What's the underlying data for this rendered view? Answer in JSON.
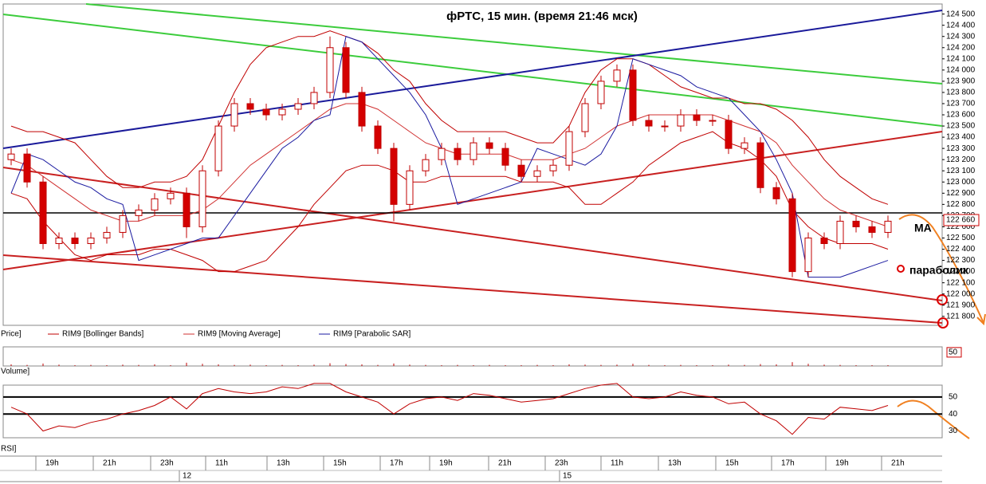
{
  "chart_data": [
    {
      "type": "candlestick",
      "title": "фРТС,  15 мин.  (время 21:46 мск)",
      "price_label": "Price]",
      "xlim": [
        -0.5,
        58.4
      ],
      "ylim": [
        121720,
        124590
      ],
      "yticks": [
        {
          "value": 124500,
          "label": "124 500"
        },
        {
          "value": 124400,
          "label": "124 400"
        },
        {
          "value": 124300,
          "label": "124 300"
        },
        {
          "value": 124200,
          "label": "124 200"
        },
        {
          "value": 124100,
          "label": "124 100"
        },
        {
          "value": 124000,
          "label": "124 000"
        },
        {
          "value": 123900,
          "label": "123 900"
        },
        {
          "value": 123800,
          "label": "123 800"
        },
        {
          "value": 123700,
          "label": "123 700"
        },
        {
          "value": 123600,
          "label": "123 600"
        },
        {
          "value": 123500,
          "label": "123 500"
        },
        {
          "value": 123400,
          "label": "123 400"
        },
        {
          "value": 123300,
          "label": "123 300"
        },
        {
          "value": 123200,
          "label": "123 200"
        },
        {
          "value": 123100,
          "label": "123 100"
        },
        {
          "value": 123000,
          "label": "123 000"
        },
        {
          "value": 122900,
          "label": "122 900"
        },
        {
          "value": 122800,
          "label": "122 800"
        },
        {
          "value": 122700,
          "label": "122 700"
        },
        {
          "value": 122600,
          "label": "122 600"
        },
        {
          "value": 122500,
          "label": "122 500"
        },
        {
          "value": 122400,
          "label": "122 400"
        },
        {
          "value": 122300,
          "label": "122 300"
        },
        {
          "value": 122200,
          "label": "122 200"
        },
        {
          "value": 122100,
          "label": "122 100"
        },
        {
          "value": 122000,
          "label": "122 000"
        },
        {
          "value": 121900,
          "label": "121 900"
        },
        {
          "value": 121800,
          "label": "121 800"
        }
      ],
      "last_price": {
        "value": 122660,
        "label": "122 660"
      },
      "xticks": [
        {
          "value": 1.55,
          "label": "19h"
        },
        {
          "value": 5.15,
          "label": "21h"
        },
        {
          "value": 8.75,
          "label": "23h"
        },
        {
          "value": 12.2,
          "label": "11h"
        },
        {
          "value": 16.05,
          "label": "13h"
        },
        {
          "value": 19.6,
          "label": "15h"
        },
        {
          "value": 23.15,
          "label": "17h"
        },
        {
          "value": 26.25,
          "label": "19h"
        },
        {
          "value": 29.95,
          "label": "21h"
        },
        {
          "value": 33.5,
          "label": "23h"
        },
        {
          "value": 37,
          "label": "11h"
        },
        {
          "value": 40.6,
          "label": "13h"
        },
        {
          "value": 44.2,
          "label": "15h"
        },
        {
          "value": 47.7,
          "label": "17h"
        },
        {
          "value": 51.1,
          "label": "19h"
        },
        {
          "value": 54.6,
          "label": "21h"
        }
      ],
      "day_ticks": [
        {
          "value": 10.55,
          "label": "12"
        },
        {
          "value": 34.4,
          "label": "15"
        }
      ],
      "open": [
        123200,
        123250,
        123000,
        122450,
        122500,
        122450,
        122500,
        122550,
        122700,
        122750,
        122850,
        122900,
        122600,
        123100,
        123500,
        123700,
        123650,
        123600,
        123650,
        123700,
        123800,
        124200,
        123800,
        123500,
        123300,
        122800,
        123100,
        123200,
        123300,
        123200,
        123350,
        123300,
        123150,
        123050,
        123100,
        123150,
        123450,
        123700,
        123900,
        124000,
        123550,
        123500,
        123500,
        123600,
        123550,
        123550,
        123300,
        123350,
        122950,
        122850,
        122200,
        122500,
        122450,
        122650,
        122600,
        122550
      ],
      "high": [
        123300,
        123300,
        123050,
        122550,
        122550,
        122550,
        122600,
        122750,
        122800,
        122900,
        122950,
        122950,
        123150,
        123550,
        123750,
        123750,
        123700,
        123700,
        123750,
        123850,
        124300,
        124250,
        123850,
        123550,
        123350,
        123150,
        123250,
        123350,
        123350,
        123400,
        123400,
        123350,
        123200,
        123150,
        123200,
        123500,
        123750,
        123950,
        124050,
        124050,
        123600,
        123550,
        123650,
        123650,
        123600,
        123600,
        123400,
        123400,
        123000,
        122900,
        122550,
        122550,
        122700,
        122700,
        122650,
        122700
      ],
      "low": [
        123150,
        122950,
        122400,
        122400,
        122400,
        122400,
        122450,
        122500,
        122650,
        122700,
        122800,
        122500,
        122550,
        123050,
        123450,
        123600,
        123550,
        123550,
        123600,
        123650,
        123750,
        123750,
        123450,
        123250,
        122650,
        122750,
        123050,
        123150,
        123150,
        123150,
        123250,
        123100,
        123000,
        123000,
        123050,
        123100,
        123400,
        123650,
        123850,
        123500,
        123450,
        123450,
        123450,
        123500,
        123500,
        123250,
        123250,
        122900,
        122800,
        122150,
        122150,
        122400,
        122400,
        122550,
        122500,
        122500
      ],
      "close": [
        123250,
        123000,
        122450,
        122500,
        122450,
        122500,
        122550,
        122700,
        122750,
        122850,
        122900,
        122600,
        123100,
        123500,
        123700,
        123650,
        123600,
        123650,
        123700,
        123800,
        124200,
        123800,
        123500,
        123300,
        122800,
        123100,
        123200,
        123300,
        123200,
        123350,
        123300,
        123150,
        123050,
        123100,
        123150,
        123450,
        123700,
        123900,
        124000,
        123550,
        123500,
        123500,
        123600,
        123550,
        123550,
        123300,
        123350,
        122950,
        122850,
        122200,
        122500,
        122450,
        122650,
        122600,
        122550,
        122650
      ],
      "series": [
        {
          "name": "RIM9 [Bollinger Bands]",
          "color": "#c00000",
          "upper": [
            123500,
            123450,
            123450,
            123400,
            123350,
            123200,
            123050,
            122950,
            122950,
            123000,
            123000,
            123050,
            123200,
            123500,
            123800,
            124050,
            124200,
            124250,
            124300,
            124300,
            124350,
            124300,
            124250,
            124150,
            124000,
            123900,
            123700,
            123550,
            123450,
            123450,
            123450,
            123450,
            123400,
            123350,
            123350,
            123500,
            123800,
            124000,
            124100,
            124100,
            124050,
            123950,
            123850,
            123800,
            123750,
            123750,
            123700,
            123700,
            123650,
            123550,
            123400,
            123200,
            123050,
            122950,
            122850,
            122800
          ],
          "lower": [
            122900,
            122850,
            122650,
            122500,
            122350,
            122300,
            122350,
            122350,
            122350,
            122400,
            122400,
            122350,
            122300,
            122200,
            122200,
            122250,
            122300,
            122450,
            122600,
            122800,
            122950,
            123100,
            123150,
            123150,
            123100,
            123000,
            123000,
            123050,
            123050,
            123050,
            123050,
            123050,
            123000,
            123000,
            123000,
            122950,
            122800,
            122800,
            122900,
            123000,
            123150,
            123250,
            123350,
            123400,
            123450,
            123350,
            123300,
            123200,
            123050,
            122750,
            122600,
            122500,
            122450,
            122450,
            122450,
            122400
          ]
        },
        {
          "name": "RIM9 [Moving Average]",
          "color": "#d03030",
          "values": [
            123200,
            123150,
            123050,
            122950,
            122850,
            122750,
            122700,
            122650,
            122650,
            122700,
            122700,
            122700,
            122750,
            122850,
            123000,
            123150,
            123250,
            123350,
            123450,
            123550,
            123650,
            123700,
            123700,
            123650,
            123550,
            123450,
            123350,
            123300,
            123250,
            123250,
            123250,
            123250,
            123200,
            123200,
            123200,
            123250,
            123300,
            123400,
            123500,
            123550,
            123600,
            123600,
            123600,
            123600,
            123600,
            123550,
            123500,
            123450,
            123350,
            123150,
            123000,
            122850,
            122750,
            122700,
            122650,
            122600
          ]
        },
        {
          "name": "RIM9 [Parabolic SAR]",
          "color": "#1a1aa0",
          "values": [
            122900,
            123250,
            123200,
            123100,
            123000,
            122950,
            122850,
            122800,
            122300,
            122350,
            122400,
            122450,
            122500,
            122500,
            122700,
            122900,
            123100,
            123300,
            123400,
            123550,
            123600,
            124300,
            124250,
            124100,
            123950,
            123800,
            123600,
            123300,
            122800,
            122850,
            122900,
            122950,
            123000,
            123300,
            123250,
            123200,
            123150,
            123250,
            123500,
            124100,
            124050,
            124000,
            123950,
            123850,
            123800,
            123750,
            123600,
            123450,
            123200,
            122900,
            122150,
            122150,
            122150,
            122200,
            122250,
            122300
          ]
        }
      ],
      "annotations": [
        "MA",
        "параболик"
      ]
    },
    {
      "type": "bar",
      "label": "Volume]",
      "color": "#c00000",
      "ylim": [
        0,
        70
      ],
      "yticks": [
        50
      ],
      "values": [
        6,
        4,
        9,
        5,
        3,
        4,
        3,
        5,
        4,
        6,
        3,
        12,
        8,
        6,
        4,
        5,
        3,
        4,
        3,
        5,
        10,
        7,
        6,
        4,
        9,
        5,
        4,
        3,
        4,
        3,
        4,
        3,
        3,
        4,
        3,
        6,
        5,
        4,
        5,
        8,
        4,
        3,
        4,
        3,
        3,
        5,
        4,
        7,
        6,
        14,
        8,
        5,
        4,
        3,
        3,
        3
      ]
    },
    {
      "type": "line",
      "label": "RSI]",
      "color": "#c00000",
      "ylim": [
        26,
        57
      ],
      "yticks": [
        50,
        40,
        30
      ],
      "values": [
        44,
        40,
        30,
        33,
        32,
        35,
        37,
        40,
        42,
        45,
        50,
        43,
        52,
        55,
        53,
        52,
        53,
        56,
        55,
        58,
        58,
        53,
        50,
        47,
        40,
        46,
        49,
        50,
        48,
        52,
        51,
        49,
        47,
        48,
        49,
        52,
        55,
        57,
        58,
        50,
        49,
        50,
        53,
        51,
        50,
        46,
        47,
        40,
        36,
        28,
        38,
        37,
        44,
        43,
        42,
        45
      ]
    }
  ]
}
